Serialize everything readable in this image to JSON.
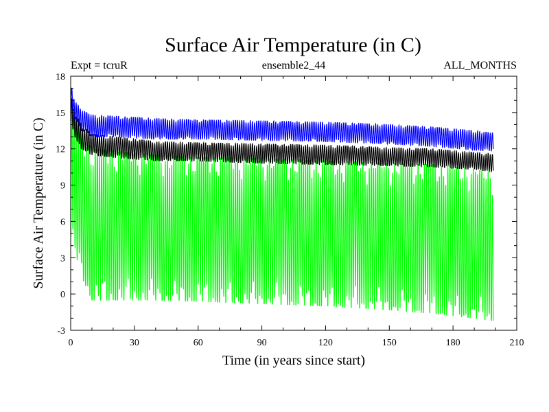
{
  "chart_data": {
    "type": "line",
    "title": "Surface Air Temperature (in C)",
    "subtitle_left": "Expt = tcruR",
    "subtitle_center": "ensemble2_44",
    "subtitle_right": "ALL_MONTHS",
    "xlabel": "Time (in years since start)",
    "ylabel": "Surface Air Temperature (in C)",
    "xlim": [
      0,
      210
    ],
    "ylim": [
      -3,
      18
    ],
    "x_ticks": [
      "0",
      "30",
      "60",
      "90",
      "120",
      "150",
      "180",
      "210"
    ],
    "y_ticks": [
      "18",
      "15",
      "12",
      "9",
      "6",
      "3",
      "0",
      "-3"
    ],
    "data_x_end": 199,
    "series": [
      {
        "color": "#00ff00",
        "envelope_years": [
          0,
          2,
          5,
          10,
          20,
          40,
          60,
          90,
          120,
          150,
          170,
          190,
          199
        ],
        "upper": [
          16.0,
          14.5,
          13.0,
          12.0,
          11.8,
          11.5,
          11.3,
          11.2,
          11.0,
          10.8,
          10.7,
          10.3,
          10.0
        ],
        "lower": [
          4.5,
          3.5,
          1.5,
          -0.5,
          -0.5,
          -0.5,
          -0.6,
          -0.8,
          -1.0,
          -1.3,
          -1.6,
          -2.0,
          -2.2
        ]
      },
      {
        "color": "#000000",
        "envelope_years": [
          0,
          2,
          5,
          10,
          20,
          40,
          60,
          90,
          120,
          150,
          170,
          190,
          199
        ],
        "upper": [
          16.5,
          15.0,
          14.0,
          13.2,
          13.0,
          12.6,
          12.5,
          12.4,
          12.3,
          12.1,
          12.0,
          11.7,
          11.6
        ],
        "lower": [
          14.0,
          13.0,
          12.0,
          11.5,
          11.3,
          11.0,
          11.0,
          10.8,
          10.7,
          10.6,
          10.5,
          10.3,
          10.1
        ]
      },
      {
        "color": "#0000ff",
        "envelope_years": [
          0,
          2,
          5,
          10,
          20,
          40,
          60,
          90,
          120,
          150,
          170,
          190,
          199
        ],
        "upper": [
          17.5,
          16.0,
          15.2,
          14.8,
          14.7,
          14.5,
          14.4,
          14.3,
          14.2,
          14.0,
          13.8,
          13.5,
          13.3
        ],
        "lower": [
          16.0,
          14.5,
          13.5,
          13.0,
          13.0,
          12.8,
          12.8,
          12.7,
          12.6,
          12.4,
          12.2,
          11.9,
          11.8
        ]
      }
    ]
  }
}
